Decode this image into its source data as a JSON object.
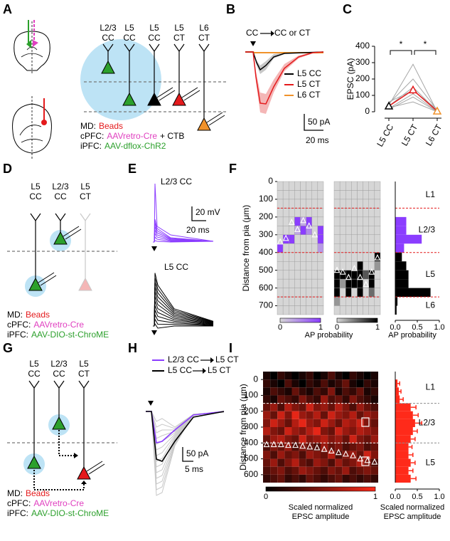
{
  "panels": {
    "A": {
      "letter": "A",
      "cells": [
        [
          "L2/3",
          "CC"
        ],
        [
          "L5",
          "CC"
        ],
        [
          "L5",
          "CC"
        ],
        [
          "L5",
          "CT"
        ],
        [
          "L6",
          "CT"
        ]
      ],
      "legend": [
        {
          "region": "MD:",
          "virus": "Beads"
        },
        {
          "region": "cPFC:",
          "virus": "AAVretro-Cre",
          "extra": "+ CTB"
        },
        {
          "region": "iPFC:",
          "virus": "AAV-dflox-ChR2"
        }
      ]
    },
    "B": {
      "letter": "B",
      "pathway": {
        "from": "CC",
        "to": "CC or CT"
      },
      "legend": [
        "L5 CC",
        "L5 CT",
        "L6 CT"
      ],
      "scale_y": "50 pA",
      "scale_x": "20 ms"
    },
    "C": {
      "letter": "C"
    },
    "D": {
      "letter": "D",
      "cells": [
        [
          "L5",
          "CC"
        ],
        [
          "L2/3",
          "CC"
        ],
        [
          "L5",
          "CT"
        ]
      ],
      "legend": [
        {
          "region": "MD:",
          "virus": "Beads"
        },
        {
          "region": "cPFC:",
          "virus": "AAVretro-Cre"
        },
        {
          "region": "iPFC:",
          "virus": "AAV-DIO-st-ChroME"
        }
      ]
    },
    "E": {
      "letter": "E",
      "traces": [
        "L2/3 CC",
        "L5 CC"
      ],
      "scale_y": "20 mV",
      "scale_x": "20 ms"
    },
    "F": {
      "letter": "F"
    },
    "G": {
      "letter": "G",
      "cells": [
        [
          "L5",
          "CC"
        ],
        [
          "L2/3",
          "CC"
        ],
        [
          "L5",
          "CT"
        ]
      ],
      "legend": [
        {
          "region": "MD:",
          "virus": "Beads"
        },
        {
          "region": "cPFC:",
          "virus": "AAVretro-Cre"
        },
        {
          "region": "iPFC:",
          "virus": "AAV-DIO-st-ChroME"
        }
      ]
    },
    "H": {
      "letter": "H",
      "legend": [
        {
          "from": "L2/3 CC",
          "to": "L5 CT"
        },
        {
          "from": "L5 CC",
          "to": "L5 CT"
        }
      ],
      "scale_y": "50 pA",
      "scale_x": "5 ms"
    },
    "I": {
      "letter": "I"
    }
  },
  "chart_data": [
    {
      "type": "line",
      "ylabel": "EPSC (pA)",
      "categories": [
        "L5 CC",
        "L5 CT",
        "L6 CT"
      ],
      "ylim": [
        0,
        400
      ],
      "yticks": [
        0,
        100,
        200,
        300,
        400
      ],
      "series": [
        {
          "color": "#a6a6a6",
          "values": [
            25,
            60,
            0
          ]
        },
        {
          "color": "#a6a6a6",
          "values": [
            40,
            290,
            0
          ]
        },
        {
          "color": "#a6a6a6",
          "values": [
            20,
            110,
            0
          ]
        },
        {
          "color": "#a6a6a6",
          "values": [
            50,
            200,
            10
          ]
        },
        {
          "color": "#a6a6a6",
          "values": [
            35,
            150,
            5
          ]
        },
        {
          "color": "#a6a6a6",
          "values": [
            15,
            90,
            0
          ]
        },
        {
          "color": "#a6a6a6",
          "values": [
            60,
            130,
            15
          ]
        },
        {
          "color": "#e41a1c",
          "values": [
            35,
            133,
            4
          ],
          "errors": [
            8,
            25,
            3
          ],
          "marker_colors": [
            "#000000",
            "#e41a1c",
            "#f0922b"
          ]
        }
      ],
      "significance": [
        "*",
        "*"
      ]
    },
    {
      "type": "heatmap",
      "ylabel": "Distance from pia (μm)",
      "ylim": [
        0,
        750
      ],
      "yticks": [
        0,
        100,
        200,
        300,
        400,
        500,
        600,
        700
      ],
      "bins": [
        0,
        50,
        100,
        150,
        200,
        250,
        300,
        350,
        400,
        450,
        500,
        550,
        600,
        650,
        700,
        750
      ],
      "heatmaps": [
        {
          "colors": [
            "#d6d6d6",
            "#8b3dff"
          ],
          "rows": [
            [
              0,
              0,
              0,
              0,
              0,
              0,
              0,
              0
            ],
            [
              0,
              0,
              0,
              0,
              0,
              0,
              0,
              0
            ],
            [
              0,
              0,
              0,
              0,
              0,
              0,
              0,
              0
            ],
            [
              0,
              0,
              0,
              0,
              0,
              0,
              0,
              0
            ],
            [
              0,
              0,
              0,
              1,
              0.3,
              1,
              0,
              0
            ],
            [
              0,
              0,
              0,
              0.3,
              1,
              0.5,
              0,
              1
            ],
            [
              0,
              1,
              1,
              0,
              0,
              0,
              0,
              1
            ],
            [
              1,
              0,
              0,
              0,
              0,
              0,
              0,
              0.4
            ],
            [
              0,
              0,
              0,
              0,
              0,
              0,
              0,
              0
            ],
            [
              0,
              0,
              0,
              0,
              0,
              0,
              0,
              0
            ],
            [
              0,
              0,
              0,
              0,
              0,
              0,
              0,
              0
            ],
            [
              0,
              0,
              0,
              0,
              0,
              0,
              0,
              0
            ],
            [
              0,
              0,
              0,
              0,
              0,
              0,
              0,
              0
            ],
            [
              0,
              0,
              0,
              0,
              0,
              0,
              0,
              0
            ],
            [
              0,
              0,
              0,
              0,
              0,
              0,
              0,
              0
            ]
          ],
          "somas": [
            340,
            320,
            230,
            270,
            220,
            250,
            300,
            null
          ]
        },
        {
          "colors": [
            "#d6d6d6",
            "#000000"
          ],
          "rows": [
            [
              0,
              0,
              0,
              0,
              0,
              0,
              0,
              0
            ],
            [
              0,
              0,
              0,
              0,
              0,
              0,
              0,
              0
            ],
            [
              0,
              0,
              0,
              0,
              0,
              0,
              0,
              0
            ],
            [
              0,
              0,
              0,
              0,
              0,
              0,
              0,
              0
            ],
            [
              0,
              0,
              0,
              0,
              0,
              0,
              0,
              0
            ],
            [
              0,
              0,
              0,
              0,
              0,
              0,
              0,
              0
            ],
            [
              0,
              0,
              0,
              0,
              0,
              0,
              0,
              0
            ],
            [
              0,
              0,
              0,
              0,
              0,
              0,
              0,
              0
            ],
            [
              0,
              0,
              0,
              0,
              0,
              0,
              0,
              1
            ],
            [
              0,
              0,
              0,
              0,
              1,
              0,
              0,
              0.3
            ],
            [
              1,
              1,
              1,
              1,
              1,
              0.6,
              1,
              0
            ],
            [
              1,
              0.3,
              1,
              1,
              1,
              0,
              1,
              0
            ],
            [
              1,
              0,
              1,
              0,
              1,
              0,
              0.5,
              0
            ],
            [
              0.3,
              0,
              0,
              0,
              0,
              0,
              0,
              0
            ],
            [
              0,
              0,
              0,
              0,
              0,
              0,
              0,
              0
            ]
          ],
          "somas": [
            500,
            510,
            540,
            490,
            540,
            580,
            510,
            430
          ]
        }
      ],
      "colorbar": {
        "ticks": [
          0,
          1
        ],
        "label": [
          "AP probability"
        ]
      },
      "layers": {
        "labels": [
          "L1",
          "L2/3",
          "L5",
          "L6"
        ],
        "boundaries": [
          150,
          400,
          650
        ],
        "colors": [
          "#e41a1c",
          "#e41a1c"
        ]
      },
      "histogram": {
        "xlim": [
          0,
          1
        ],
        "xticks": [
          {
            "value": 0,
            "label": "0.0"
          },
          {
            "value": 0.5,
            "label": "0.5"
          },
          {
            "value": 1,
            "label": "1.0"
          }
        ],
        "xlabel": [
          "AP probability"
        ],
        "series": [
          {
            "color": "#8b3dff",
            "values": [
              null,
              null,
              null,
              null,
              0.25,
              0.25,
              0.6,
              0.2,
              null,
              null,
              null,
              null,
              null,
              null,
              null
            ]
          },
          {
            "color": "#000000",
            "values": [
              null,
              null,
              null,
              null,
              null,
              null,
              null,
              null,
              0.15,
              0.25,
              0.3,
              0.3,
              0.8,
              0.05,
              0.03
            ]
          }
        ]
      }
    },
    {
      "type": "heatmap",
      "ylabel": "Distance from pia (μm)",
      "ylim": [
        -50,
        650
      ],
      "yticks": [
        0,
        100,
        200,
        300,
        400,
        500,
        600
      ],
      "bins": [
        -50,
        0,
        50,
        100,
        150,
        200,
        250,
        300,
        350,
        400,
        450,
        500,
        550,
        600,
        650
      ],
      "heatmaps": [
        {
          "colors": [
            "#000000",
            "#ff2a1a"
          ],
          "rows": [
            [
              0.1,
              0.0,
              0.2,
              0.1,
              0.0,
              0.1,
              0.2,
              0.0,
              0.1,
              0.3,
              0.1,
              0.0,
              0.2,
              0.1,
              0.0,
              0.1
            ],
            [
              0.2,
              0.1,
              0.0,
              0.3,
              0.1,
              0.0,
              0.2,
              0.1,
              0.3,
              0.1,
              0.2,
              0.4,
              0.1,
              0.0,
              0.2,
              0.1
            ],
            [
              0.1,
              0.3,
              0.2,
              0.1,
              0.4,
              0.2,
              0.1,
              0.3,
              0.2,
              0.5,
              0.1,
              0.3,
              0.2,
              0.4,
              0.1,
              0.2
            ],
            [
              0.2,
              0.1,
              0.4,
              0.3,
              0.2,
              0.5,
              0.3,
              0.2,
              0.6,
              0.3,
              0.4,
              0.2,
              0.5,
              0.3,
              0.2,
              0.1
            ],
            [
              0.4,
              0.6,
              0.3,
              0.7,
              0.5,
              0.4,
              0.8,
              0.5,
              0.6,
              0.4,
              0.7,
              0.5,
              0.3,
              0.6,
              0.4,
              0.3
            ],
            [
              0.6,
              0.4,
              0.8,
              0.5,
              0.9,
              0.6,
              0.5,
              0.7,
              0.4,
              0.8,
              0.6,
              0.5,
              0.7,
              0.4,
              0.6,
              0.5
            ],
            [
              0.5,
              0.8,
              0.6,
              0.4,
              0.7,
              0.9,
              0.6,
              0.5,
              0.8,
              0.6,
              0.4,
              0.7,
              0.6,
              0.8,
              0.5,
              0.4
            ],
            [
              0.7,
              0.5,
              0.4,
              0.8,
              0.6,
              0.5,
              0.7,
              0.9,
              0.5,
              0.4,
              0.8,
              0.6,
              0.5,
              0.7,
              0.6,
              0.5
            ],
            [
              0.4,
              0.6,
              0.7,
              0.5,
              0.4,
              0.8,
              0.5,
              0.6,
              0.7,
              0.5,
              0.6,
              0.4,
              0.8,
              0.5,
              0.4,
              0.6
            ],
            [
              0.3,
              0.5,
              0.4,
              0.6,
              0.3,
              0.5,
              0.4,
              0.3,
              0.6,
              0.4,
              0.5,
              0.3,
              0.4,
              0.5,
              0.3,
              0.4
            ],
            [
              0.5,
              0.3,
              0.6,
              0.4,
              0.5,
              0.3,
              0.6,
              0.5,
              0.4,
              0.7,
              0.3,
              0.5,
              0.6,
              0.4,
              0.8,
              0.5
            ],
            [
              0.4,
              0.6,
              0.3,
              0.5,
              0.7,
              0.4,
              0.3,
              0.6,
              0.5,
              0.3,
              0.6,
              0.4,
              0.5,
              0.7,
              0.5,
              0.3
            ],
            [
              0.3,
              0.4,
              0.5,
              0.3,
              0.4,
              0.6,
              0.5,
              0.4,
              0.3,
              0.5,
              0.4,
              0.6,
              0.3,
              0.4,
              0.5,
              0.4
            ],
            [
              0.2,
              0.3,
              0.4,
              0.2,
              0.3,
              0.2,
              0.4,
              0.3,
              0.2,
              0.3,
              0.4,
              0.2,
              0.3,
              0.2,
              0.3,
              0.2
            ]
          ],
          "somas": [
            410,
            410,
            410,
            415,
            415,
            420,
            425,
            430,
            440,
            450,
            460,
            470,
            480,
            500,
            510,
            520
          ]
        }
      ],
      "colorbar": {
        "ticks": [
          0,
          1
        ],
        "label": [
          "Scaled normalized",
          "EPSC amplitude"
        ]
      },
      "layers": {
        "labels": [
          "L1",
          "L2/3",
          "L5"
        ],
        "boundaries": [
          150,
          400
        ],
        "colors": [
          "#ffffff",
          "#8c8c8c"
        ]
      },
      "histogram": {
        "xlim": [
          0,
          1
        ],
        "xticks": [
          {
            "value": 0,
            "label": "0.0"
          },
          {
            "value": 0.5,
            "label": "0.5"
          },
          {
            "value": 1,
            "label": "1.0"
          }
        ],
        "xlabel": [
          "Scaled normalized",
          "EPSC amplitude"
        ],
        "series": [
          {
            "color": "#ff2a1a",
            "values": [
              null,
              0.05,
              0.08,
              0.1,
              0.35,
              0.4,
              0.45,
              0.4,
              0.35,
              0.3,
              0.3,
              0.35,
              0.3,
              0.35
            ],
            "errors": [
              null,
              0.05,
              0.05,
              0.08,
              0.12,
              0.12,
              0.15,
              0.1,
              0.1,
              0.08,
              0.1,
              0.1,
              0.1,
              0.12
            ]
          }
        ]
      }
    }
  ]
}
